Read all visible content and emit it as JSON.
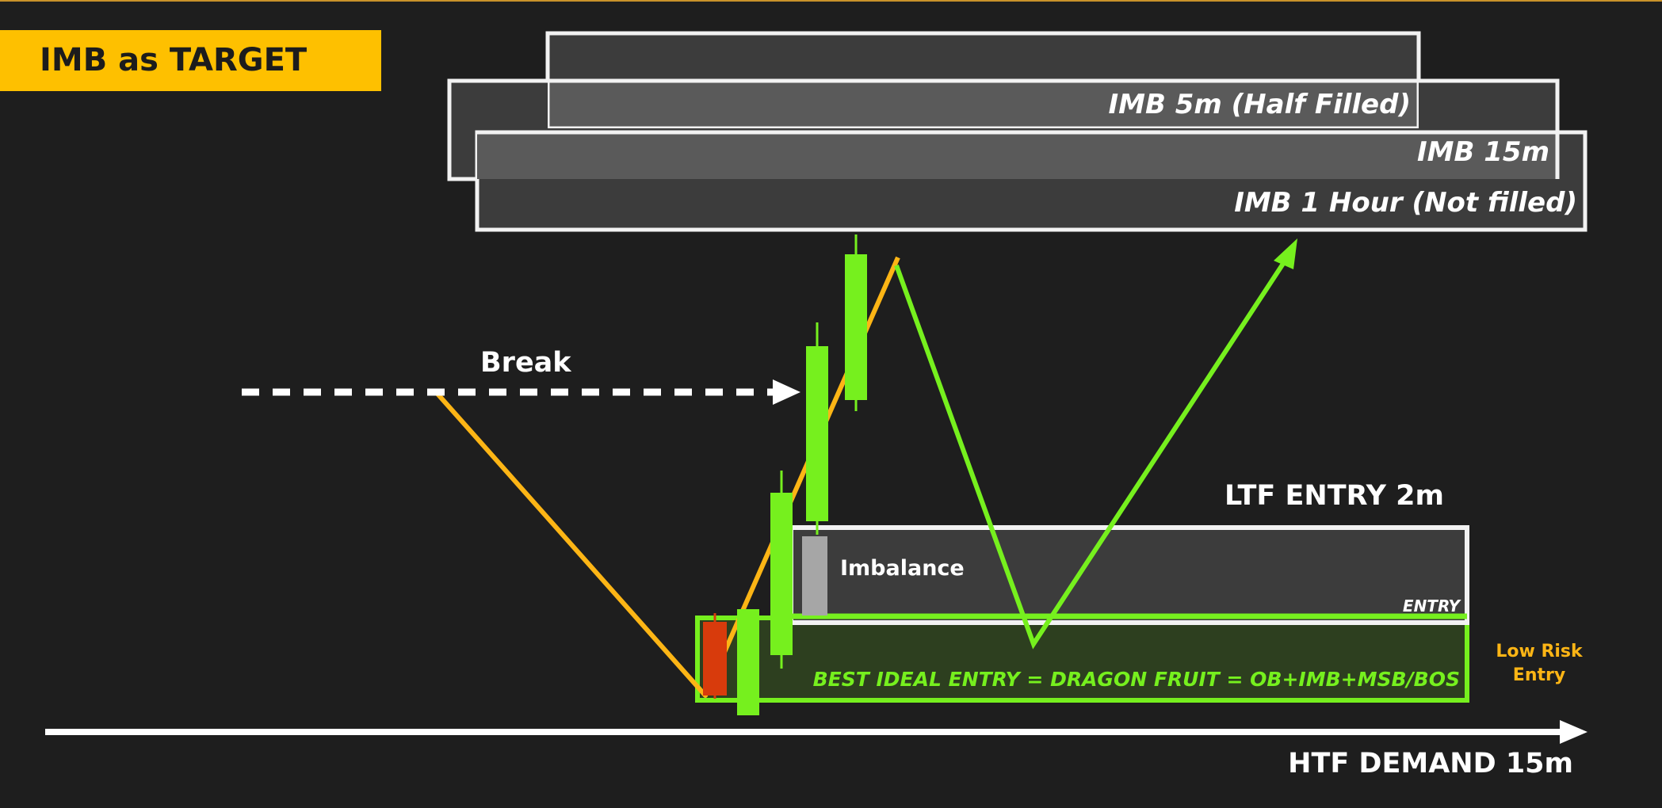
{
  "title": "IMB as TARGET",
  "imbalance_zones": {
    "imb_5m": "IMB 5m (Half Filled)",
    "imb_15m": "IMB 15m",
    "imb_1h": "IMB 1 Hour (Not filled)"
  },
  "labels": {
    "break": "Break",
    "ltf_entry": "LTF ENTRY 2m",
    "imbalance": "Imbalance",
    "entry": "ENTRY",
    "best_entry": "BEST IDEAL ENTRY = DRAGON FRUIT = OB+IMB+MSB/BOS",
    "low_risk_line1": "Low Risk",
    "low_risk_line2": "Entry",
    "htf_demand": "HTF DEMAND 15m"
  },
  "colors": {
    "background": "#1e1e1e",
    "title_banner": "#fec000",
    "bullish_green": "#76f01e",
    "bearish_red": "#d83b0c",
    "price_path_orange": "#fdb515",
    "zone_border": "#f2f2f2",
    "zone_fill_dark": "#3c3c3c",
    "zone_fill_light": "#5a5a5a",
    "demand_fill": "#2d3f1f",
    "imbalance_candle": "#a6a6a6"
  }
}
